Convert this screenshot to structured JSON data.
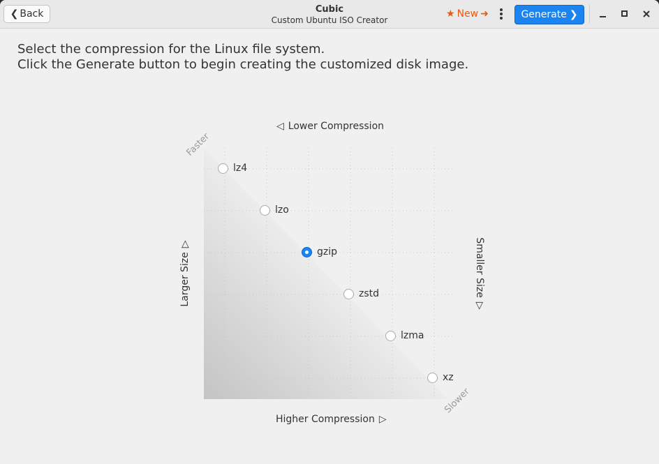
{
  "header": {
    "back_label": "Back",
    "title": "Cubic",
    "subtitle": "Custom Ubuntu ISO Creator",
    "new_label": "New",
    "generate_label": "Generate"
  },
  "instructions": {
    "line1": "Select the compression for the Linux file system.",
    "line2": "Click the Generate button to begin creating the customized disk image."
  },
  "chart": {
    "top_label": "Lower Compression",
    "bottom_label": "Higher Compression",
    "left_label": "Larger Size",
    "right_label": "Smaller Size",
    "corner_fast": "Faster",
    "corner_slow": "Slower"
  },
  "options": [
    {
      "label": "lz4",
      "selected": false
    },
    {
      "label": "lzo",
      "selected": false
    },
    {
      "label": "gzip",
      "selected": true
    },
    {
      "label": "zstd",
      "selected": false
    },
    {
      "label": "lzma",
      "selected": false
    },
    {
      "label": "xz",
      "selected": false
    }
  ],
  "colors": {
    "accent": "#1b84f0",
    "new_link": "#f0570a"
  }
}
